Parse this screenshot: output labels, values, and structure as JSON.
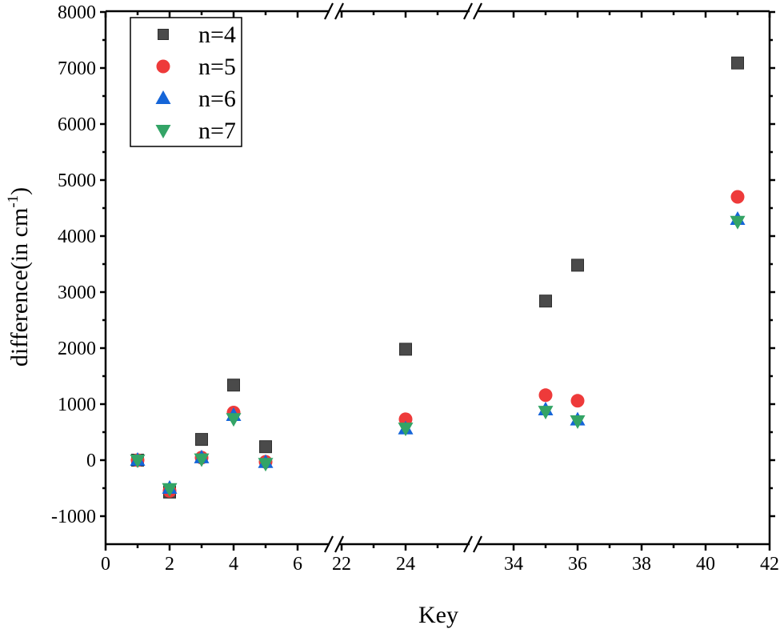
{
  "chart_data": {
    "type": "scatter",
    "title": "",
    "xlabel": "Key",
    "ylabel": "difference(in cm",
    "ylabel_superscript": "-1",
    "ylabel_suffix": ")",
    "ylim": [
      -1500,
      8000
    ],
    "yticks": [
      -1000,
      0,
      1000,
      2000,
      3000,
      4000,
      5000,
      6000,
      7000,
      8000
    ],
    "x_segments": [
      {
        "range": [
          0,
          6.95
        ],
        "ticks": [
          0,
          2,
          4,
          6
        ],
        "minor": [
          1,
          3,
          5
        ]
      },
      {
        "range": [
          21.98,
          25.9
        ],
        "ticks": [
          22,
          24
        ],
        "minor": [
          23,
          25
        ]
      },
      {
        "range": [
          32.9,
          42
        ],
        "ticks": [
          34,
          36,
          38,
          40,
          42
        ],
        "minor": [
          35,
          37,
          39,
          41
        ]
      }
    ],
    "axis_break": true,
    "grid": false,
    "legend_position": "upper left",
    "x": [
      1,
      2,
      3,
      4,
      5,
      24,
      35,
      36,
      41
    ],
    "series": [
      {
        "name": "n=4",
        "marker": "square",
        "color": "#4a4a4a",
        "values": [
          0,
          -570,
          370,
          1340,
          240,
          1980,
          2840,
          3480,
          7090
        ]
      },
      {
        "name": "n=5",
        "marker": "circle",
        "color": "#ee3a3a",
        "values": [
          0,
          -550,
          45,
          850,
          -30,
          730,
          1160,
          1060,
          4700
        ]
      },
      {
        "name": "n=6",
        "marker": "triangle-up",
        "color": "#1565d8",
        "values": [
          0,
          -500,
          45,
          800,
          -40,
          560,
          900,
          720,
          4300
        ]
      },
      {
        "name": "n=7",
        "marker": "triangle-down",
        "color": "#33a466",
        "values": [
          0,
          -510,
          20,
          740,
          -60,
          570,
          870,
          700,
          4260
        ]
      }
    ]
  }
}
